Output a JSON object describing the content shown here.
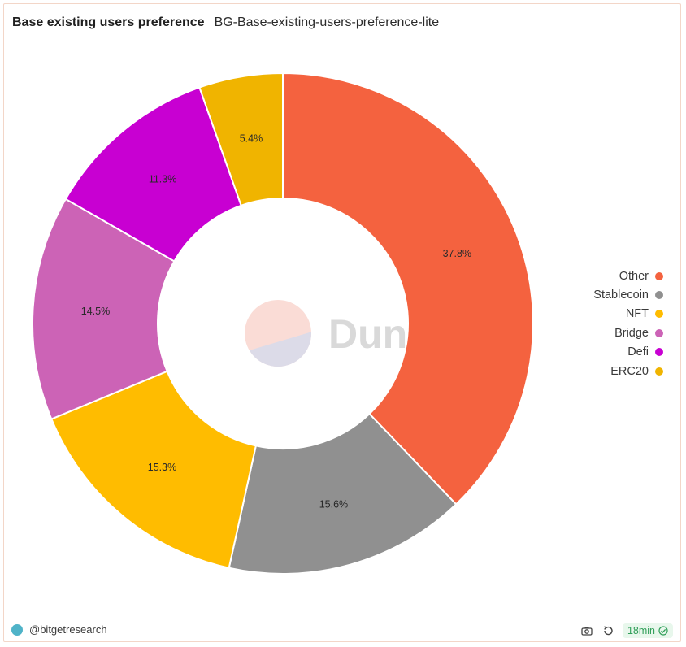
{
  "header": {
    "title": "Base existing users preference",
    "subtitle": "BG-Base-existing-users-preference-lite"
  },
  "chart_data": {
    "type": "pie",
    "variant": "donut",
    "categories": [
      "Other",
      "Stablecoin",
      "NFT",
      "Bridge",
      "Defi",
      "ERC20"
    ],
    "values": [
      37.8,
      15.6,
      15.3,
      14.5,
      11.3,
      5.4
    ],
    "labels": [
      "37.8%",
      "15.6%",
      "15.3%",
      "14.5%",
      "11.3%",
      "5.4%"
    ],
    "colors": [
      "#f4623f",
      "#909090",
      "#ffbc00",
      "#cc63b6",
      "#c800d2",
      "#f0b400"
    ],
    "legend_position": "right",
    "watermark": "Dune"
  },
  "footer": {
    "author": "@bitgetresearch",
    "refresh_age": "18min",
    "icons": [
      "camera-icon",
      "refresh-icon",
      "check-circle-icon"
    ]
  }
}
